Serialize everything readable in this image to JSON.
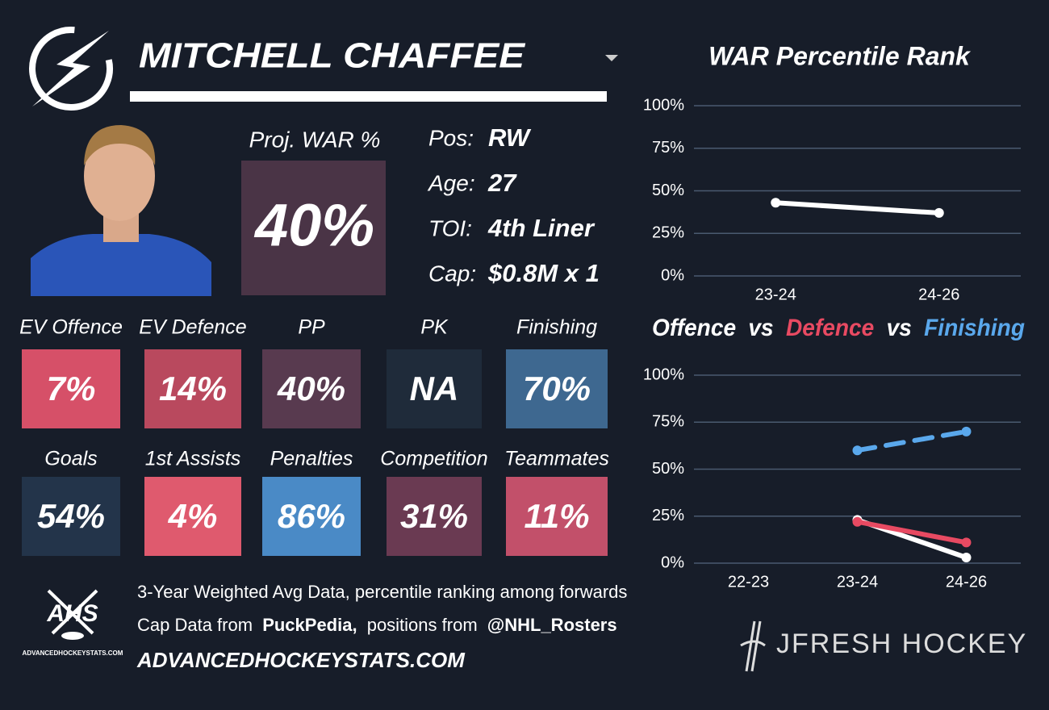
{
  "header": {
    "name": "MITCHELL CHAFFEE"
  },
  "projected": {
    "label": "Proj. WAR %",
    "value": "40%",
    "color": "#4a3446"
  },
  "info": [
    {
      "label": "Pos:",
      "value": "RW"
    },
    {
      "label": "Age:",
      "value": "27"
    },
    {
      "label": "TOI:",
      "value": "4th Liner"
    },
    {
      "label": "Cap:",
      "value": "$0.8M x 1"
    }
  ],
  "tiles": [
    {
      "label": "EV Offence",
      "value": "7%",
      "color": "#d65068"
    },
    {
      "label": "EV Defence",
      "value": "14%",
      "color": "#b9495e"
    },
    {
      "label": "PP",
      "value": "40%",
      "color": "#583a4f"
    },
    {
      "label": "PK",
      "value": "NA",
      "color": "#1f2b3a"
    },
    {
      "label": "Finishing",
      "value": "70%",
      "color": "#3e6890"
    },
    {
      "label": "Goals",
      "value": "54%",
      "color": "#23344a"
    },
    {
      "label": "1st Assists",
      "value": "4%",
      "color": "#df5a6e"
    },
    {
      "label": "Penalties",
      "value": "86%",
      "color": "#4a8ac6"
    },
    {
      "label": "Competition",
      "value": "31%",
      "color": "#6a3a52"
    },
    {
      "label": "Teammates",
      "value": "11%",
      "color": "#c2506a"
    }
  ],
  "footer": {
    "logo": "AHS",
    "logo_caption": "ADVANCEDHOCKEYSTATS.COM",
    "line1": "3-Year Weighted Avg Data, percentile ranking among forwards",
    "line2": [
      "Cap Data from",
      "PuckPedia,",
      "positions from",
      "@NHL_Rosters"
    ],
    "url": "ADVANCEDHOCKEYSTATS.COM",
    "brand": "JFRESH HOCKEY"
  },
  "chart_data": [
    {
      "type": "line",
      "title": "WAR Percentile Rank",
      "categories": [
        "23-24",
        "24-26"
      ],
      "values": [
        43,
        37
      ],
      "color": "#ffffff",
      "ylim": [
        0,
        100
      ],
      "yticks": [
        {
          "value": 0,
          "label": "0%"
        },
        {
          "value": 25,
          "label": "25%"
        },
        {
          "value": 50,
          "label": "50%"
        },
        {
          "value": 75,
          "label": "75%"
        },
        {
          "value": 100,
          "label": "100%"
        }
      ],
      "grid": true
    },
    {
      "type": "line",
      "title_separator": "vs",
      "categories": [
        "22-23",
        "23-24",
        "24-26"
      ],
      "series": [
        {
          "name": "Offence",
          "color": "#ffffff",
          "values": [
            null,
            23,
            3
          ]
        },
        {
          "name": "Defence",
          "color": "#e84a62",
          "values": [
            null,
            22,
            11
          ]
        },
        {
          "name": "Finishing",
          "color": "#5aa8ec",
          "values": [
            null,
            60,
            70
          ],
          "dashed": true
        }
      ],
      "ylim": [
        0,
        100
      ],
      "yticks": [
        {
          "value": 0,
          "label": "0%"
        },
        {
          "value": 25,
          "label": "25%"
        },
        {
          "value": 50,
          "label": "50%"
        },
        {
          "value": 75,
          "label": "75%"
        },
        {
          "value": 100,
          "label": "100%"
        }
      ],
      "grid": true
    }
  ]
}
